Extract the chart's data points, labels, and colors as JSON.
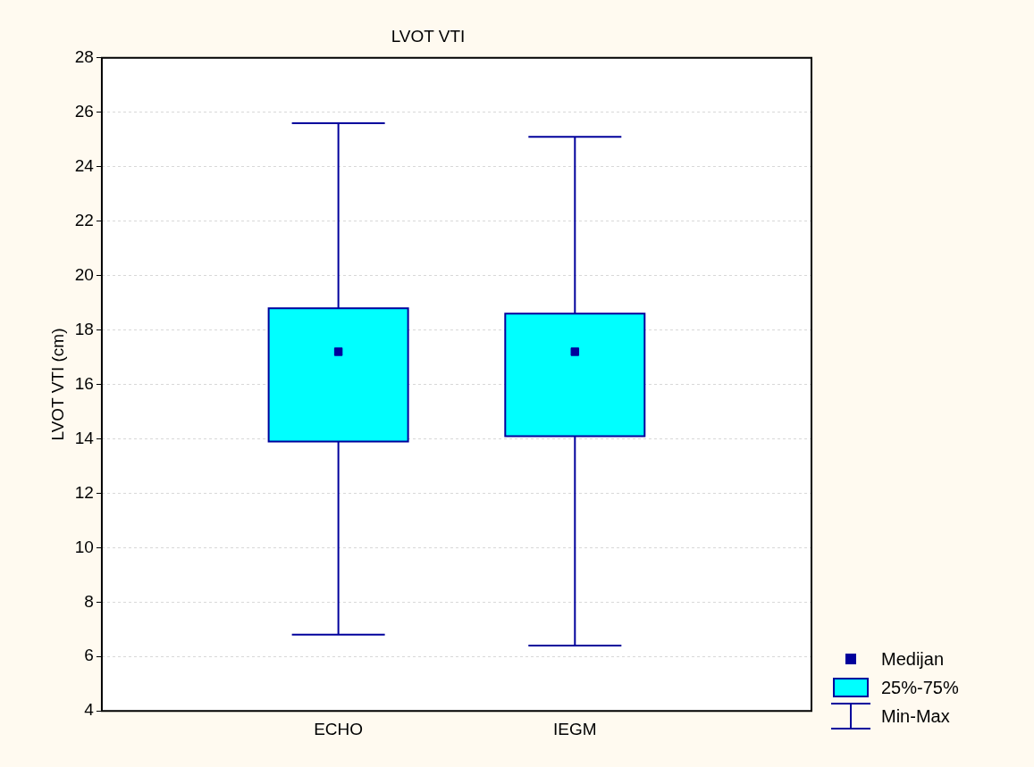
{
  "chart_data": {
    "type": "box",
    "title": "LVOT VTI",
    "ylabel": "LVOT VTI (cm)",
    "categories": [
      "ECHO",
      "IEGM"
    ],
    "series": [
      {
        "color": "#00ffff",
        "boxes": [
          {
            "low": 6.8,
            "q1": 13.9,
            "median": 17.2,
            "q3": 18.8,
            "high": 25.6
          },
          {
            "low": 6.4,
            "q1": 14.1,
            "median": 17.2,
            "q3": 18.6,
            "high": 25.1
          }
        ]
      }
    ],
    "ylim": [
      4,
      28
    ],
    "yticks": [
      4,
      6,
      8,
      10,
      12,
      14,
      16,
      18,
      20,
      22,
      24,
      26,
      28
    ],
    "grid": "y",
    "marker": "square",
    "annotations": [
      "Medijan",
      "25%-75%",
      "Min-Max"
    ]
  }
}
